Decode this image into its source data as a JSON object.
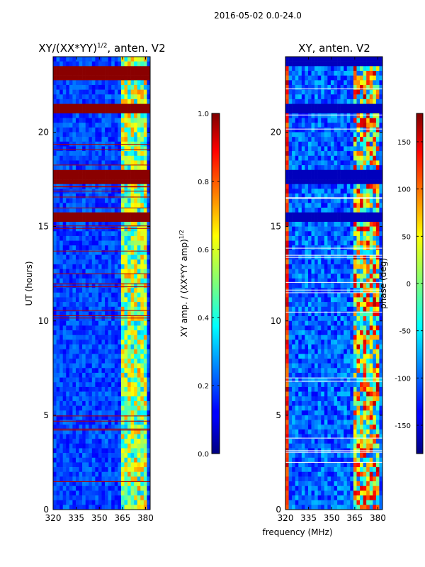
{
  "figure_title": "2016-05-02 0.0-24.0",
  "chart_data": [
    {
      "type": "heatmap",
      "title": "XY/(XX*YY)^1/2, anten. V2",
      "title_main": "XY/(XX*YY)",
      "title_sup": "1/2",
      "title_suffix": ", anten. V2",
      "xlabel": "",
      "ylabel": "UT (hours)",
      "xlim": [
        320,
        383
      ],
      "ylim": [
        0,
        24
      ],
      "xticks": [
        "320",
        "335",
        "350",
        "365",
        "380"
      ],
      "xtick_values": [
        320,
        335,
        350,
        365,
        380
      ],
      "yticks": [
        "0",
        "5",
        "10",
        "15",
        "20"
      ],
      "ytick_values": [
        0,
        5,
        10,
        15,
        20
      ],
      "colormap": "jet",
      "saturated_bands_hours": [
        [
          22.7,
          23.5
        ],
        [
          21.0,
          21.6
        ],
        [
          17.2,
          17.9
        ],
        [
          15.2,
          15.8
        ]
      ],
      "bright_band_mhz": [
        364,
        381
      ],
      "colorbar": {
        "label_main": "XY amp. / (XX*YY amp)",
        "label_sup": "1/2",
        "range": [
          0.0,
          1.0
        ],
        "ticks": [
          "0.0",
          "0.2",
          "0.4",
          "0.6",
          "0.8",
          "1.0"
        ],
        "tick_values": [
          0.0,
          0.2,
          0.4,
          0.6,
          0.8,
          1.0
        ]
      }
    },
    {
      "type": "heatmap",
      "title": "XY, anten. V2",
      "xlabel": "frequency (MHz)",
      "ylabel": "",
      "xlim": [
        320,
        383
      ],
      "ylim": [
        0,
        24
      ],
      "xticks": [
        "320",
        "335",
        "350",
        "365",
        "380"
      ],
      "xtick_values": [
        320,
        335,
        350,
        365,
        380
      ],
      "yticks": [
        "0",
        "5",
        "10",
        "15",
        "20"
      ],
      "ytick_values": [
        0,
        5,
        10,
        15,
        20
      ],
      "colormap": "jet",
      "dark_bands_hours": [
        [
          23.5,
          24.0
        ],
        [
          20.9,
          21.6
        ],
        [
          17.2,
          17.9
        ],
        [
          15.2,
          15.8
        ]
      ],
      "bright_band_mhz": [
        364,
        381
      ],
      "colorbar": {
        "label": "phase (deg)",
        "range": [
          -180,
          180
        ],
        "ticks": [
          "-150",
          "-100",
          "-50",
          "0",
          "50",
          "100",
          "150"
        ],
        "tick_values": [
          -150,
          -100,
          -50,
          0,
          50,
          100,
          150
        ]
      }
    }
  ]
}
